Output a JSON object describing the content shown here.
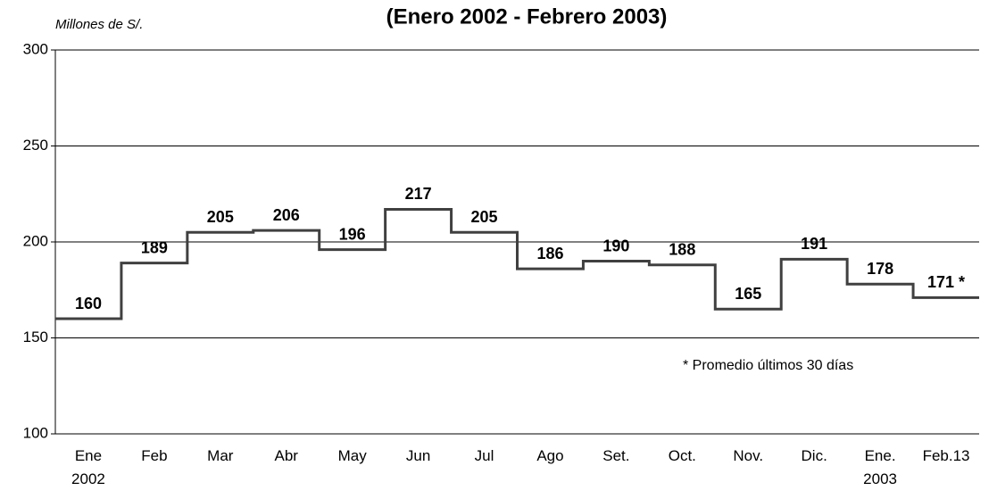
{
  "chart_data": {
    "type": "step",
    "title": "(Enero 2002 - Febrero 2003)",
    "y_label": "Millones de S/.",
    "annotation": "* Promedio últimos 30 días",
    "categories": [
      "Ene\n2002",
      "Feb",
      "Mar",
      "Abr",
      "May",
      "Jun",
      "Jul",
      "Ago",
      "Set.",
      "Oct.",
      "Nov.",
      "Dic.",
      "Ene.\n2003",
      "Feb.13"
    ],
    "values": [
      160,
      189,
      205,
      206,
      196,
      217,
      205,
      186,
      190,
      188,
      165,
      191,
      178,
      171
    ],
    "value_labels": [
      "160",
      "189",
      "205",
      "206",
      "196",
      "217",
      "205",
      "186",
      "190",
      "188",
      "165",
      "191",
      "178",
      "171 *"
    ],
    "color": "#404040",
    "ylim": [
      100,
      300
    ],
    "yticks": [
      100,
      150,
      200,
      250,
      300
    ],
    "grid": true
  }
}
